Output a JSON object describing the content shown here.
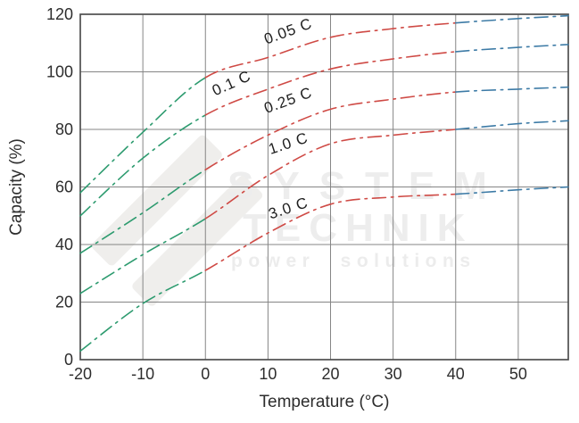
{
  "chart_data": {
    "type": "line",
    "title": "",
    "xlabel": "Temperature (°C)",
    "ylabel": "Capacity (%)",
    "xlim": [
      -20,
      58
    ],
    "ylim": [
      0,
      120
    ],
    "x_ticks": [
      -20,
      -10,
      0,
      10,
      20,
      30,
      40,
      50
    ],
    "y_ticks": [
      0,
      20,
      40,
      60,
      80,
      100,
      120
    ],
    "grid": true,
    "legend_position": "labels-on-curves",
    "line_style": "dash-dot",
    "x": [
      -20,
      -10,
      0,
      10,
      20,
      30,
      40,
      50,
      58
    ],
    "series": [
      {
        "name": "0.05 C",
        "values": [
          58,
          79,
          98,
          105,
          112,
          115,
          117,
          118.5,
          119.5
        ],
        "label": {
          "temp": 13.5,
          "capacity": 112.5,
          "rotation": -20
        }
      },
      {
        "name": "0.1 C",
        "values": [
          50,
          70,
          85,
          94,
          101,
          104.5,
          107,
          108.5,
          109.5
        ],
        "label": {
          "temp": 4.5,
          "capacity": 94.5,
          "rotation": -24
        }
      },
      {
        "name": "0.25 C",
        "values": [
          37,
          51,
          66,
          78,
          87,
          90.5,
          93,
          94,
          94.7
        ],
        "label": {
          "temp": 13.5,
          "capacity": 88.5,
          "rotation": -20
        }
      },
      {
        "name": "1.0 C",
        "values": [
          23,
          36.5,
          49,
          64,
          75,
          78,
          80,
          82,
          83
        ],
        "label": {
          "temp": 13.5,
          "capacity": 73.5,
          "rotation": -18
        }
      },
      {
        "name": "3.0 C",
        "values": [
          3,
          19.5,
          31,
          44,
          54,
          56.5,
          57.5,
          59,
          60
        ],
        "label": {
          "temp": 13.5,
          "capacity": 51,
          "rotation": -18
        }
      }
    ],
    "temperature_color_zones": [
      {
        "range": [
          -20,
          0
        ],
        "color": "#2d9b6f"
      },
      {
        "range": [
          0,
          40
        ],
        "color": "#cf4a45"
      },
      {
        "range": [
          40,
          58
        ],
        "color": "#3d7ba6"
      }
    ]
  },
  "watermark": {
    "line1": "SYSTEM",
    "line2": "TECHNIK",
    "line3": "power solutions"
  },
  "colors": {
    "grid": "#858585",
    "frame": "#4f4f4f",
    "axis_text": "#2d2d2d",
    "curve_label_text": "#1f1f1f",
    "watermark": "#ededed",
    "logo": "#efeeec",
    "background": "#ffffff"
  }
}
